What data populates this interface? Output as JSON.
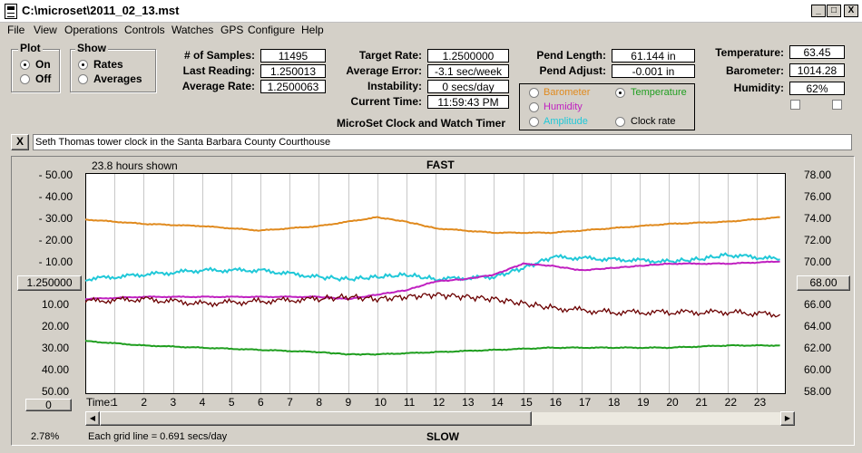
{
  "window": {
    "title": "C:\\microset\\2011_02_13.mst",
    "min": "_",
    "max": "□",
    "close": "X"
  },
  "menu": [
    "File",
    "View",
    "Operations",
    "Controls",
    "Watches",
    "GPS",
    "Configure",
    "Help"
  ],
  "plot_group": {
    "title": "Plot",
    "options": [
      "On",
      "Off"
    ],
    "selected": 0
  },
  "show_group": {
    "title": "Show",
    "options": [
      "Rates",
      "Averages"
    ],
    "selected": 0
  },
  "stats": {
    "samples_label": "# of Samples:",
    "samples": "11495",
    "last_reading_label": "Last Reading:",
    "last_reading": "1.250013",
    "average_rate_label": "Average Rate:",
    "average_rate": "1.2500063",
    "target_rate_label": "Target Rate:",
    "target_rate": "1.2500000",
    "average_error_label": "Average Error:",
    "average_error": "-3.1 sec/week",
    "instability_label": "Instability:",
    "instability": "0 secs/day",
    "current_time_label": "Current Time:",
    "current_time": "11:59:43 PM",
    "pend_length_label": "Pend Length:",
    "pend_length": "61.144 in",
    "pend_adjust_label": "Pend Adjust:",
    "pend_adjust": "-0.001 in",
    "temperature_label": "Temperature:",
    "temperature": "63.45",
    "barometer_label": "Barometer:",
    "barometer": "1014.28",
    "humidity_label": "Humidity:",
    "humidity": "62%"
  },
  "subtitle": "MicroSet Clock and Watch Timer",
  "sensor_options": [
    {
      "label": "Barometer",
      "color": "#e08a1e",
      "selected": false
    },
    {
      "label": "Temperature",
      "color": "#1f9e1f",
      "selected": true
    },
    {
      "label": "Humidity",
      "color": "#c020c0",
      "selected": false
    },
    {
      "label": "Amplitude",
      "color": "#20c8d8",
      "selected": false
    },
    {
      "label": "Clock rate",
      "color": "#000000",
      "selected": false
    }
  ],
  "description": {
    "close": "X",
    "text": "Seth Thomas tower clock in the Santa Barbara County Courthouse"
  },
  "graph": {
    "hours_shown": "23.8 hours shown",
    "fast_label": "FAST",
    "slow_label": "SLOW",
    "time_label": "Time:",
    "center_button": "1.250000",
    "right_button": "68.00",
    "zero_button": "0",
    "percent": "2.78%",
    "grid_note": "Each grid line = 0.691 secs/day",
    "left_labels_top": [
      "- 50.00",
      "- 40.00",
      "- 30.00",
      "- 20.00",
      "- 10.00"
    ],
    "left_labels_bottom": [
      "10.00",
      "20.00",
      "30.00",
      "40.00",
      "50.00"
    ],
    "right_labels": [
      "78.00",
      "76.00",
      "74.00",
      "72.00",
      "70.00",
      "66.00",
      "64.00",
      "62.00",
      "60.00",
      "58.00"
    ],
    "time_ticks": [
      "1",
      "2",
      "3",
      "4",
      "5",
      "6",
      "7",
      "8",
      "9",
      "10",
      "11",
      "12",
      "13",
      "14",
      "15",
      "16",
      "17",
      "18",
      "19",
      "20",
      "21",
      "22",
      "23"
    ]
  },
  "chart_data": {
    "type": "line",
    "xlabel": "Time:",
    "x_range": [
      0,
      24
    ],
    "left_axis_range": [
      -50,
      50
    ],
    "right_axis_range": [
      58,
      78
    ],
    "grid": true,
    "series": [
      {
        "name": "Barometer",
        "color": "#e08a1e",
        "x": [
          0,
          2,
          4,
          6,
          8,
          10,
          11,
          12,
          14,
          16,
          18,
          20,
          22,
          23.8
        ],
        "y": [
          -29,
          -27,
          -26,
          -24,
          -26,
          -30,
          -28,
          -25,
          -23,
          -23,
          -25,
          -27,
          -28,
          -30
        ]
      },
      {
        "name": "Amplitude",
        "color": "#20c8d8",
        "x": [
          0,
          2,
          4,
          6,
          8,
          9,
          10,
          11,
          12,
          14,
          15,
          16,
          18,
          20,
          21,
          22,
          23.8
        ],
        "y": [
          -2,
          -4,
          -6,
          -6,
          -3,
          -2,
          -3,
          -4,
          -2,
          -3,
          -7,
          -12,
          -11,
          -10,
          -11,
          -13,
          -11
        ]
      },
      {
        "name": "Humidity",
        "color": "#c020c0",
        "x": [
          0,
          2,
          4,
          6,
          8,
          9,
          10,
          11,
          12,
          13,
          14,
          15,
          16,
          17,
          18,
          19,
          20,
          22,
          23.8
        ],
        "y": [
          7,
          6,
          6,
          6,
          6,
          7,
          5,
          3,
          -1,
          -2,
          -4,
          -9,
          -8,
          -6,
          -7,
          -8,
          -9,
          -9,
          -10
        ]
      },
      {
        "name": "Clock rate",
        "color": "#6b0000",
        "x": [
          0,
          2,
          4,
          6,
          8,
          9,
          10,
          11,
          12,
          13,
          14,
          15,
          16,
          18,
          20,
          22,
          23.8
        ],
        "y": [
          8,
          7,
          9,
          8,
          7,
          6,
          7,
          6,
          5,
          6,
          7,
          9,
          11,
          13,
          13,
          13,
          14
        ]
      },
      {
        "name": "Temperature",
        "color": "#1f9e1f",
        "x": [
          0,
          2,
          4,
          6,
          8,
          9,
          10,
          12,
          14,
          16,
          18,
          20,
          22,
          23.8
        ],
        "y": [
          26,
          28,
          29,
          30,
          31,
          32,
          32,
          31,
          30,
          29,
          29,
          29,
          28,
          28
        ]
      }
    ]
  }
}
